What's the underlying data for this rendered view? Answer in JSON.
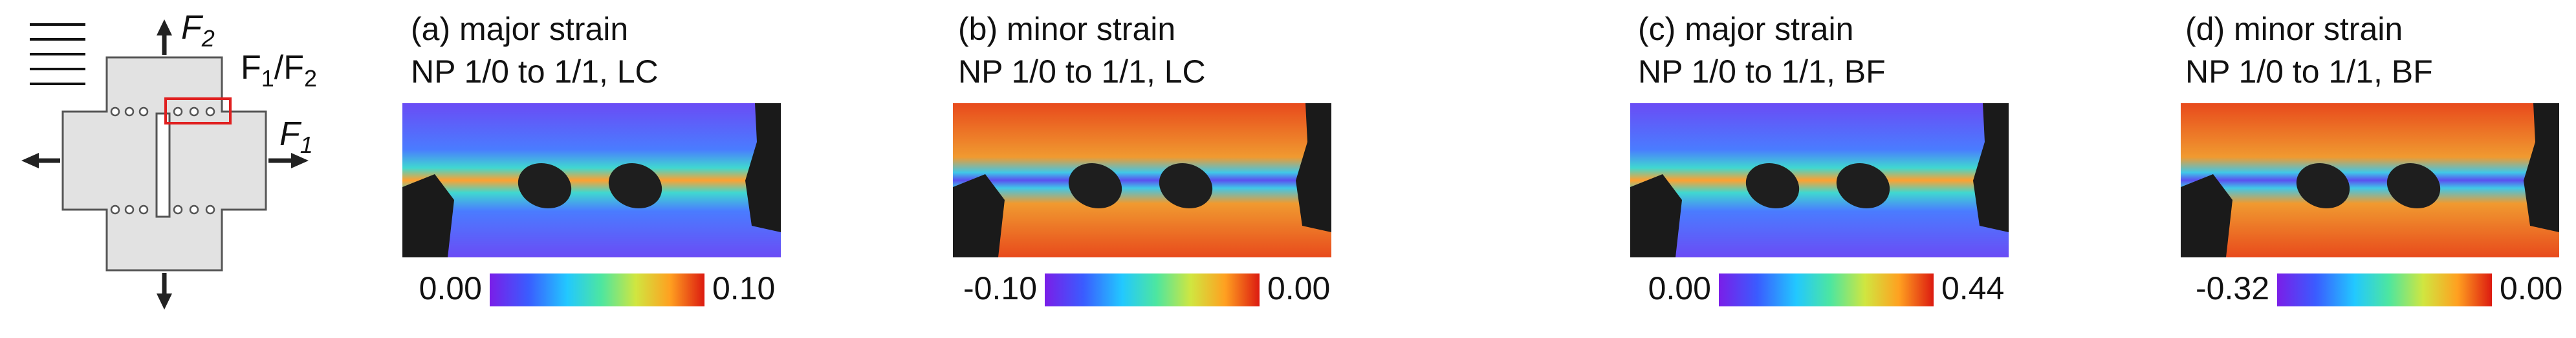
{
  "schematic": {
    "force_vertical": {
      "base": "F",
      "sub": "2"
    },
    "ratio": {
      "base1": "F",
      "sub1": "1",
      "sep": "/",
      "base2": "F",
      "sub2": "2"
    },
    "force_horizontal": {
      "base": "F",
      "sub": "1"
    }
  },
  "panels": [
    {
      "title": "(a) major strain",
      "subtitle": "NP 1/0 to 1/1, LC",
      "colorbar": {
        "min": "0.00",
        "max": "0.10"
      }
    },
    {
      "title": "(b) minor strain",
      "subtitle": "NP 1/0 to 1/1, LC",
      "colorbar": {
        "min": "-0.10",
        "max": "0.00"
      }
    },
    {
      "title": "(c) major strain",
      "subtitle": "NP 1/0 to 1/1, BF",
      "colorbar": {
        "min": "0.00",
        "max": "0.44"
      }
    },
    {
      "title": "(d) minor strain",
      "subtitle": "NP 1/0 to 1/1, BF",
      "colorbar": {
        "min": "-0.32",
        "max": "0.00"
      }
    }
  ]
}
